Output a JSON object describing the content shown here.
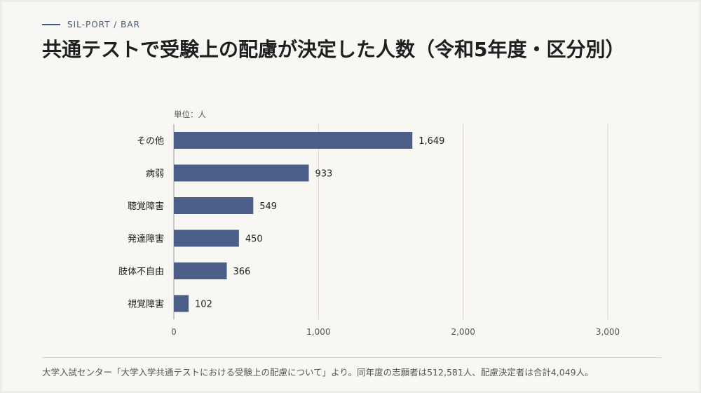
{
  "header": {
    "eyebrow": "SIL-PORT / BAR",
    "title": "共通テストで受験上の配慮が決定した人数（令和5年度・区分別）"
  },
  "chart_data": {
    "type": "bar",
    "orientation": "horizontal",
    "unit_label": "単位：人",
    "categories": [
      "その他",
      "病弱",
      "聴覚障害",
      "発達障害",
      "肢体不自由",
      "視覚障害"
    ],
    "values": [
      1649,
      933,
      549,
      450,
      366,
      102
    ],
    "value_labels": [
      "1,649",
      "933",
      "549",
      "450",
      "366",
      "102"
    ],
    "xlim": [
      0,
      3000
    ],
    "xticks": [
      0,
      1000,
      2000,
      3000
    ],
    "xtick_labels": [
      "0",
      "1,000",
      "2,000",
      "3,000"
    ],
    "grid": true,
    "bar_color": "#4a5e88"
  },
  "footer": {
    "source": "大学入試センター「大学入学共通テストにおける受験上の配慮について」より。同年度の志願者は512,581人、配慮決定者は合計4,049人。"
  }
}
